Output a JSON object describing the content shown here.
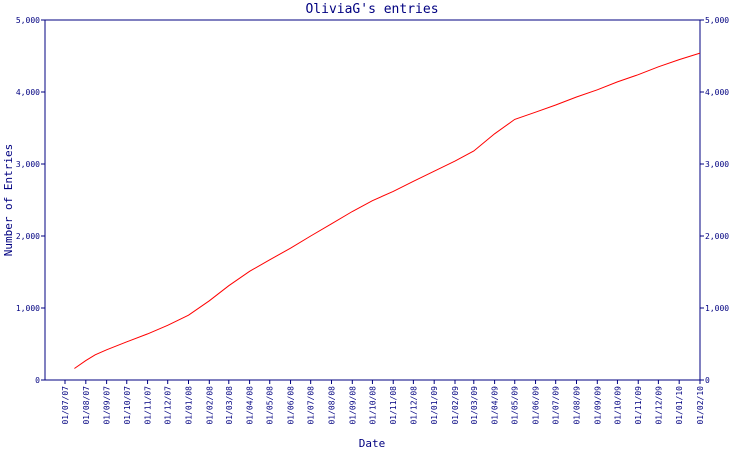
{
  "chart_data": {
    "type": "line",
    "title": "OliviaG's entries",
    "xlabel": "Date",
    "ylabel": "Number of Entries",
    "colors": {
      "axis": "#000080",
      "line": "#ff0000",
      "background": "#ffffff"
    },
    "grid": false,
    "ylim": [
      0,
      5000
    ],
    "y_ticks": [
      "0",
      "1,000",
      "2,000",
      "3,000",
      "4,000",
      "5,000"
    ],
    "y_tick_values": [
      0,
      1000,
      2000,
      3000,
      4000,
      5000
    ],
    "x_tick_labels": [
      "01/07/07",
      "01/08/07",
      "01/09/07",
      "01/10/07",
      "01/11/07",
      "01/12/07",
      "01/01/08",
      "01/02/08",
      "01/03/08",
      "01/04/08",
      "01/05/08",
      "01/06/08",
      "01/07/08",
      "01/08/08",
      "01/09/08",
      "01/10/08",
      "01/11/08",
      "01/12/08",
      "01/01/09",
      "01/02/09",
      "01/03/09",
      "01/04/09",
      "01/05/09",
      "01/06/09",
      "01/07/09",
      "01/08/09",
      "01/09/09",
      "01/10/09",
      "01/11/09",
      "01/12/09",
      "01/01/10",
      "01/02/10"
    ],
    "series": [
      {
        "x": [
          "2007-07-15",
          "2007-08-01",
          "2007-08-15",
          "2007-09-01",
          "2007-10-01",
          "2007-11-01",
          "2007-12-01",
          "2008-01-01",
          "2008-02-01",
          "2008-03-01",
          "2008-04-01",
          "2008-05-01",
          "2008-06-01",
          "2008-07-01",
          "2008-08-01",
          "2008-09-01",
          "2008-10-01",
          "2008-11-01",
          "2008-12-01",
          "2009-01-01",
          "2009-02-01",
          "2009-03-01",
          "2009-04-01",
          "2009-05-01",
          "2009-06-01",
          "2009-07-01",
          "2009-08-01",
          "2009-09-01",
          "2009-10-01",
          "2009-11-01",
          "2009-12-01",
          "2010-01-01",
          "2010-02-01"
        ],
        "values": [
          160,
          270,
          350,
          420,
          530,
          640,
          760,
          900,
          1100,
          1310,
          1510,
          1670,
          1830,
          2000,
          2170,
          2340,
          2490,
          2620,
          2760,
          2900,
          3040,
          3180,
          3420,
          3620,
          3720,
          3820,
          3930,
          4030,
          4140,
          4240,
          4350,
          4450,
          4540
        ]
      }
    ]
  }
}
